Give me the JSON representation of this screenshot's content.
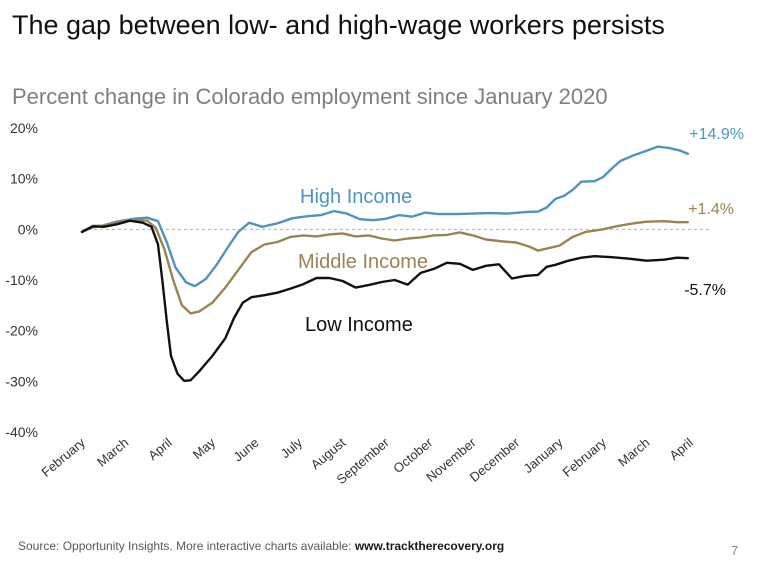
{
  "title": "The gap between low- and high-wage workers persists",
  "subtitle": "Percent change in Colorado employment since January 2020",
  "footer": {
    "text": "Source: Opportunity Insights. More interactive charts available: ",
    "link": "www.tracktherecovery.org"
  },
  "page_number": "7",
  "chart_data": {
    "type": "line",
    "x_labels": [
      "February",
      "March",
      "April",
      "May",
      "June",
      "July",
      "August",
      "September",
      "October",
      "November",
      "December",
      "January",
      "February",
      "March",
      "April"
    ],
    "ylim": [
      -40,
      20
    ],
    "y_ticks": [
      20,
      10,
      0,
      -10,
      -20,
      -30,
      -40
    ],
    "y_tick_labels": [
      "20%",
      "10%",
      "0%",
      "-10%",
      "-20%",
      "-30%",
      "-40%"
    ],
    "zero_line": "dashed",
    "grid": false,
    "series": [
      {
        "name": "High Income",
        "color": "#4f94be",
        "end_label": "+14.9%",
        "points": [
          [
            0.0,
            -0.5
          ],
          [
            0.25,
            0.4
          ],
          [
            0.5,
            0.8
          ],
          [
            0.8,
            1.5
          ],
          [
            1.2,
            2.1
          ],
          [
            1.5,
            2.3
          ],
          [
            1.75,
            1.6
          ],
          [
            1.95,
            -2.5
          ],
          [
            2.15,
            -7.5
          ],
          [
            2.4,
            -10.5
          ],
          [
            2.6,
            -11.2
          ],
          [
            2.85,
            -9.8
          ],
          [
            3.1,
            -7.0
          ],
          [
            3.4,
            -3.0
          ],
          [
            3.6,
            -0.5
          ],
          [
            3.85,
            1.3
          ],
          [
            4.15,
            0.5
          ],
          [
            4.5,
            1.2
          ],
          [
            4.85,
            2.2
          ],
          [
            5.2,
            2.6
          ],
          [
            5.5,
            2.8
          ],
          [
            5.8,
            3.6
          ],
          [
            6.1,
            3.1
          ],
          [
            6.4,
            2.0
          ],
          [
            6.7,
            1.8
          ],
          [
            7.0,
            2.1
          ],
          [
            7.3,
            2.8
          ],
          [
            7.6,
            2.5
          ],
          [
            7.9,
            3.3
          ],
          [
            8.2,
            3.0
          ],
          [
            8.6,
            3.0
          ],
          [
            9.0,
            3.1
          ],
          [
            9.4,
            3.2
          ],
          [
            9.8,
            3.1
          ],
          [
            10.2,
            3.4
          ],
          [
            10.5,
            3.5
          ],
          [
            10.7,
            4.3
          ],
          [
            10.9,
            6.0
          ],
          [
            11.1,
            6.6
          ],
          [
            11.3,
            7.8
          ],
          [
            11.5,
            9.4
          ],
          [
            11.8,
            9.5
          ],
          [
            12.0,
            10.3
          ],
          [
            12.2,
            12.0
          ],
          [
            12.4,
            13.5
          ],
          [
            12.7,
            14.6
          ],
          [
            13.0,
            15.5
          ],
          [
            13.25,
            16.3
          ],
          [
            13.5,
            16.1
          ],
          [
            13.75,
            15.6
          ],
          [
            13.95,
            14.9
          ]
        ]
      },
      {
        "name": "Middle Income",
        "color": "#9c8450",
        "end_label": "+1.4%",
        "points": [
          [
            0.0,
            -0.5
          ],
          [
            0.25,
            0.7
          ],
          [
            0.5,
            0.7
          ],
          [
            0.8,
            1.3
          ],
          [
            1.2,
            1.9
          ],
          [
            1.5,
            1.7
          ],
          [
            1.7,
            0.3
          ],
          [
            1.9,
            -4.0
          ],
          [
            2.1,
            -10.0
          ],
          [
            2.3,
            -15.0
          ],
          [
            2.5,
            -16.6
          ],
          [
            2.7,
            -16.2
          ],
          [
            3.0,
            -14.5
          ],
          [
            3.3,
            -11.5
          ],
          [
            3.6,
            -8.0
          ],
          [
            3.9,
            -4.5
          ],
          [
            4.2,
            -3.0
          ],
          [
            4.5,
            -2.5
          ],
          [
            4.8,
            -1.5
          ],
          [
            5.1,
            -1.2
          ],
          [
            5.4,
            -1.4
          ],
          [
            5.7,
            -1.0
          ],
          [
            6.0,
            -0.8
          ],
          [
            6.3,
            -1.4
          ],
          [
            6.6,
            -1.2
          ],
          [
            6.9,
            -1.8
          ],
          [
            7.2,
            -2.2
          ],
          [
            7.5,
            -1.8
          ],
          [
            7.8,
            -1.6
          ],
          [
            8.1,
            -1.2
          ],
          [
            8.4,
            -1.1
          ],
          [
            8.7,
            -0.6
          ],
          [
            9.0,
            -1.2
          ],
          [
            9.3,
            -2.0
          ],
          [
            9.7,
            -2.4
          ],
          [
            10.0,
            -2.6
          ],
          [
            10.3,
            -3.4
          ],
          [
            10.5,
            -4.2
          ],
          [
            10.7,
            -3.8
          ],
          [
            11.0,
            -3.2
          ],
          [
            11.3,
            -1.5
          ],
          [
            11.6,
            -0.5
          ],
          [
            12.0,
            0.0
          ],
          [
            12.3,
            0.6
          ],
          [
            12.7,
            1.2
          ],
          [
            13.0,
            1.5
          ],
          [
            13.4,
            1.6
          ],
          [
            13.7,
            1.4
          ],
          [
            13.95,
            1.4
          ]
        ]
      },
      {
        "name": "Low Income",
        "color": "#111111",
        "end_label": "-5.7%",
        "points": [
          [
            0.0,
            -0.5
          ],
          [
            0.25,
            0.6
          ],
          [
            0.5,
            0.5
          ],
          [
            0.8,
            1.0
          ],
          [
            1.1,
            1.7
          ],
          [
            1.4,
            1.3
          ],
          [
            1.6,
            0.5
          ],
          [
            1.75,
            -3.0
          ],
          [
            1.85,
            -10.0
          ],
          [
            1.95,
            -18.0
          ],
          [
            2.05,
            -25.0
          ],
          [
            2.2,
            -28.5
          ],
          [
            2.35,
            -29.9
          ],
          [
            2.5,
            -29.8
          ],
          [
            2.7,
            -28.0
          ],
          [
            3.0,
            -25.0
          ],
          [
            3.3,
            -21.5
          ],
          [
            3.5,
            -17.5
          ],
          [
            3.7,
            -14.5
          ],
          [
            3.9,
            -13.4
          ],
          [
            4.2,
            -13.0
          ],
          [
            4.5,
            -12.5
          ],
          [
            4.8,
            -11.7
          ],
          [
            5.1,
            -10.8
          ],
          [
            5.4,
            -9.6
          ],
          [
            5.7,
            -9.6
          ],
          [
            6.0,
            -10.2
          ],
          [
            6.3,
            -11.5
          ],
          [
            6.6,
            -11.0
          ],
          [
            6.9,
            -10.4
          ],
          [
            7.2,
            -10.0
          ],
          [
            7.5,
            -10.9
          ],
          [
            7.8,
            -8.6
          ],
          [
            8.1,
            -7.8
          ],
          [
            8.4,
            -6.6
          ],
          [
            8.7,
            -6.8
          ],
          [
            9.0,
            -8.0
          ],
          [
            9.3,
            -7.2
          ],
          [
            9.6,
            -6.9
          ],
          [
            9.9,
            -9.7
          ],
          [
            10.2,
            -9.2
          ],
          [
            10.5,
            -9.0
          ],
          [
            10.7,
            -7.4
          ],
          [
            10.9,
            -7.0
          ],
          [
            11.2,
            -6.2
          ],
          [
            11.5,
            -5.6
          ],
          [
            11.8,
            -5.3
          ],
          [
            12.2,
            -5.5
          ],
          [
            12.6,
            -5.8
          ],
          [
            13.0,
            -6.2
          ],
          [
            13.4,
            -6.0
          ],
          [
            13.7,
            -5.6
          ],
          [
            13.95,
            -5.7
          ]
        ]
      }
    ]
  }
}
